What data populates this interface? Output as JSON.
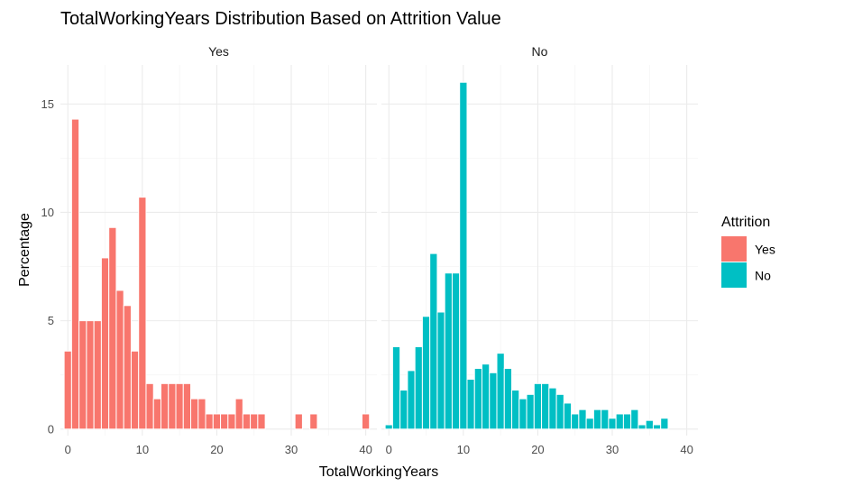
{
  "chart_data": {
    "type": "bar",
    "title": "TotalWorkingYears Distribution Based on Attrition Value",
    "xlabel": "TotalWorkingYears",
    "ylabel": "Percentage",
    "xlim": [
      -1,
      41.5
    ],
    "ylim": [
      -0.3,
      16.8
    ],
    "x_ticks": [
      0,
      10,
      20,
      30,
      40
    ],
    "y_ticks": [
      0,
      5,
      10,
      15
    ],
    "grid": true,
    "legend": {
      "title": "Attrition",
      "position": "right",
      "entries": [
        {
          "label": "Yes",
          "color": "#F8766D"
        },
        {
          "label": "No",
          "color": "#00BFC4"
        }
      ]
    },
    "panels": [
      {
        "strip_label": "Yes",
        "color": "#F8766D",
        "x": [
          0,
          1,
          2,
          3,
          4,
          5,
          6,
          7,
          8,
          9,
          10,
          11,
          12,
          13,
          14,
          15,
          16,
          17,
          18,
          19,
          20,
          21,
          22,
          23,
          24,
          25,
          26,
          27,
          28,
          29,
          30,
          31,
          32,
          33,
          34,
          35,
          36,
          37,
          38,
          39,
          40
        ],
        "values": [
          3.6,
          14.3,
          5.0,
          5.0,
          5.0,
          7.9,
          9.3,
          6.4,
          5.7,
          3.6,
          10.7,
          2.1,
          1.4,
          2.1,
          2.1,
          2.1,
          2.1,
          1.4,
          1.4,
          0.7,
          0.7,
          0.7,
          0.7,
          1.4,
          0.7,
          0.7,
          0.7,
          0,
          0,
          0,
          0,
          0.7,
          0,
          0.7,
          0,
          0,
          0,
          0,
          0,
          0,
          0.7
        ]
      },
      {
        "strip_label": "No",
        "color": "#00BFC4",
        "x": [
          0,
          1,
          2,
          3,
          4,
          5,
          6,
          7,
          8,
          9,
          10,
          11,
          12,
          13,
          14,
          15,
          16,
          17,
          18,
          19,
          20,
          21,
          22,
          23,
          24,
          25,
          26,
          27,
          28,
          29,
          30,
          31,
          32,
          33,
          34,
          35,
          36,
          37
        ],
        "values": [
          0.2,
          3.8,
          1.8,
          2.7,
          3.8,
          5.2,
          8.1,
          5.4,
          7.2,
          7.2,
          16.0,
          2.3,
          2.8,
          3.0,
          2.6,
          3.5,
          2.8,
          1.8,
          1.4,
          1.6,
          2.1,
          2.1,
          1.9,
          1.6,
          1.2,
          0.7,
          0.9,
          0.5,
          0.9,
          0.9,
          0.5,
          0.7,
          0.7,
          0.9,
          0.2,
          0.4,
          0.2,
          0.5
        ]
      }
    ]
  }
}
